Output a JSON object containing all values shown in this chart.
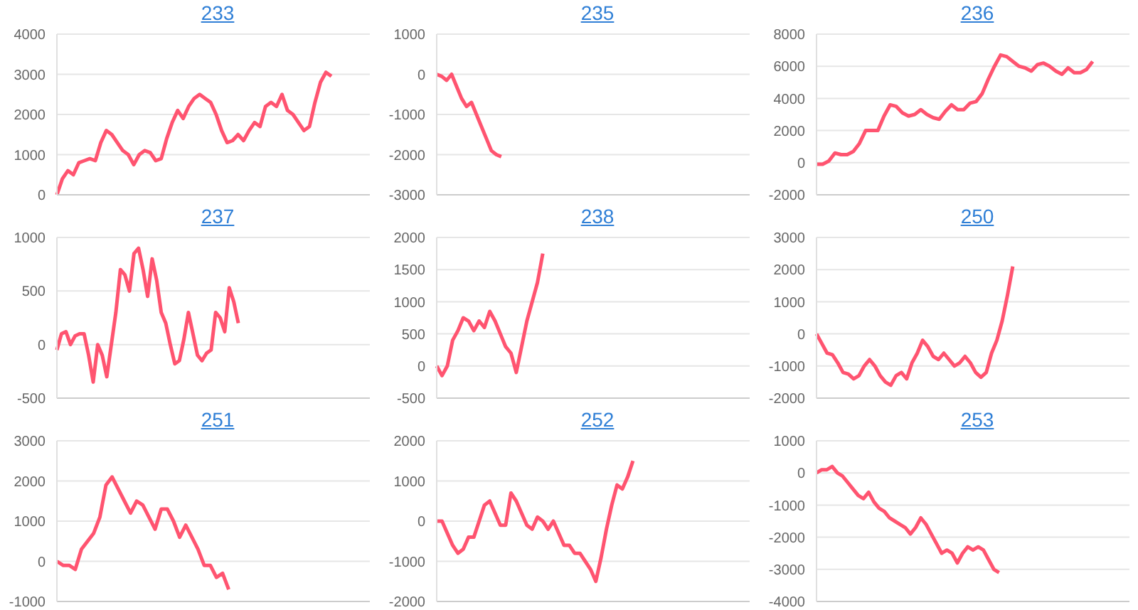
{
  "chart_data": [
    {
      "type": "line",
      "title": "233",
      "color": "#ff5470",
      "ylim": [
        0,
        4000
      ],
      "yticks": [
        0,
        1000,
        2000,
        3000,
        4000
      ],
      "grid": "y",
      "tick_labels": "y",
      "categories": [
        null,
        null,
        null,
        null,
        null,
        null,
        null,
        null,
        null,
        null,
        null,
        null,
        null,
        null,
        null,
        null,
        null,
        null,
        null,
        null,
        null,
        null,
        null,
        null,
        null,
        null,
        null,
        null,
        null,
        null,
        null,
        null,
        null,
        null,
        null,
        null,
        null,
        null,
        null,
        null,
        null,
        null,
        null,
        null,
        null,
        null,
        null,
        null,
        null,
        null,
        null,
        null,
        null,
        null,
        null,
        null,
        null,
        null
      ],
      "values": [
        0,
        400,
        600,
        500,
        800,
        850,
        900,
        850,
        1300,
        1600,
        1500,
        1300,
        1100,
        1000,
        750,
        1000,
        1100,
        1050,
        850,
        900,
        1400,
        1800,
        2100,
        1900,
        2200,
        2400,
        2500,
        2400,
        2300,
        2000,
        1600,
        1300,
        1350,
        1500,
        1350,
        1600,
        1800,
        1700,
        2200,
        2300,
        2200,
        2500,
        2100,
        2000,
        1800,
        1600,
        1700,
        2300,
        2800,
        3050,
        2950,
        null,
        null,
        null,
        null,
        null,
        null,
        null
      ]
    },
    {
      "type": "line",
      "title": "235",
      "color": "#ff5470",
      "ylim": [
        -3000,
        1000
      ],
      "yticks": [
        -3000,
        -2000,
        -1000,
        0,
        1000
      ],
      "grid": "y",
      "tick_labels": "y",
      "categories": [
        null,
        null,
        null,
        null,
        null,
        null,
        null,
        null,
        null,
        null,
        null,
        null,
        null,
        null,
        null,
        null,
        null,
        null,
        null,
        null,
        null,
        null,
        null,
        null,
        null,
        null,
        null,
        null,
        null,
        null,
        null,
        null,
        null,
        null,
        null,
        null,
        null,
        null,
        null,
        null,
        null,
        null,
        null,
        null,
        null,
        null,
        null,
        null,
        null,
        null,
        null,
        null,
        null,
        null,
        null,
        null,
        null,
        null,
        null,
        null,
        null,
        null,
        null,
        null
      ],
      "values": [
        0,
        -50,
        -150,
        0,
        -300,
        -600,
        -800,
        -700,
        -1000,
        -1300,
        -1600,
        -1900,
        -2000,
        -2050,
        null,
        null,
        null,
        null,
        null,
        null,
        null,
        null,
        null,
        null,
        null,
        null,
        null,
        null,
        null,
        null,
        null,
        null,
        null,
        null,
        null,
        null,
        null,
        null,
        null,
        null,
        null,
        null,
        null,
        null,
        null,
        null,
        null,
        null,
        null,
        null,
        null,
        null,
        null,
        null,
        null,
        null,
        null,
        null,
        null,
        null,
        null,
        null,
        null,
        null
      ]
    },
    {
      "type": "line",
      "title": "236",
      "color": "#ff5470",
      "ylim": [
        -2000,
        8000
      ],
      "yticks": [
        -2000,
        0,
        2000,
        4000,
        6000,
        8000
      ],
      "grid": "y",
      "tick_labels": "y",
      "categories": [
        null,
        null,
        null,
        null,
        null,
        null,
        null,
        null,
        null,
        null,
        null,
        null,
        null,
        null,
        null,
        null,
        null,
        null,
        null,
        null,
        null,
        null,
        null,
        null,
        null,
        null,
        null,
        null,
        null,
        null,
        null,
        null,
        null,
        null,
        null,
        null,
        null,
        null,
        null,
        null,
        null,
        null,
        null,
        null,
        null,
        null,
        null,
        null,
        null,
        null,
        null,
        null
      ],
      "values": [
        -100,
        -100,
        100,
        600,
        500,
        500,
        700,
        1200,
        2000,
        2000,
        2000,
        2900,
        3600,
        3500,
        3100,
        2900,
        3000,
        3300,
        3000,
        2800,
        2700,
        3200,
        3600,
        3300,
        3300,
        3700,
        3800,
        4300,
        5200,
        6000,
        6700,
        6600,
        6300,
        6000,
        5900,
        5700,
        6100,
        6200,
        6000,
        5700,
        5500,
        5900,
        5600,
        5600,
        5800,
        6300,
        null,
        null,
        null,
        null,
        null,
        null
      ]
    },
    {
      "type": "line",
      "title": "237",
      "color": "#ff5470",
      "ylim": [
        -500,
        1000
      ],
      "yticks": [
        -500,
        0,
        500,
        1000
      ],
      "grid": "y",
      "tick_labels": "y",
      "categories": [
        null,
        null,
        null,
        null,
        null,
        null,
        null,
        null,
        null,
        null,
        null,
        null,
        null,
        null,
        null,
        null,
        null,
        null,
        null,
        null,
        null,
        null,
        null,
        null,
        null,
        null,
        null,
        null,
        null,
        null,
        null,
        null,
        null,
        null,
        null,
        null,
        null,
        null,
        null,
        null,
        null,
        null,
        null,
        null,
        null,
        null,
        null,
        null,
        null,
        null,
        null,
        null,
        null,
        null,
        null,
        null,
        null,
        null,
        null,
        null,
        null,
        null,
        null,
        null,
        null,
        null,
        null,
        null,
        null,
        null
      ],
      "values": [
        -50,
        100,
        120,
        0,
        80,
        100,
        100,
        -100,
        -350,
        0,
        -100,
        -300,
        0,
        300,
        700,
        650,
        500,
        850,
        900,
        700,
        450,
        800,
        600,
        300,
        200,
        0,
        -180,
        -150,
        50,
        300,
        100,
        -100,
        -150,
        -80,
        -50,
        300,
        250,
        120,
        530,
        400,
        200,
        null,
        null,
        null,
        null,
        null,
        null,
        null,
        null,
        null,
        null,
        null,
        null,
        null,
        null,
        null,
        null,
        null,
        null,
        null,
        null,
        null,
        null,
        null,
        null,
        null,
        null,
        null,
        null,
        null
      ]
    },
    {
      "type": "line",
      "title": "238",
      "color": "#ff5470",
      "ylim": [
        -500,
        2000
      ],
      "yticks": [
        -500,
        0,
        500,
        1000,
        1500,
        2000
      ],
      "grid": "y",
      "tick_labels": "y",
      "categories": [
        null,
        null,
        null,
        null,
        null,
        null,
        null,
        null,
        null,
        null,
        null,
        null,
        null,
        null,
        null,
        null,
        null,
        null,
        null,
        null,
        null,
        null,
        null,
        null,
        null,
        null,
        null,
        null,
        null,
        null,
        null,
        null,
        null,
        null,
        null,
        null,
        null,
        null,
        null,
        null,
        null,
        null,
        null,
        null,
        null,
        null,
        null,
        null,
        null,
        null,
        null,
        null,
        null,
        null,
        null,
        null,
        null,
        null,
        null,
        null
      ],
      "values": [
        0,
        -150,
        0,
        400,
        550,
        750,
        700,
        550,
        700,
        600,
        850,
        700,
        500,
        300,
        200,
        -100,
        300,
        700,
        1000,
        1300,
        1750,
        null,
        null,
        null,
        null,
        null,
        null,
        null,
        null,
        null,
        null,
        null,
        null,
        null,
        null,
        null,
        null,
        null,
        null,
        null,
        null,
        null,
        null,
        null,
        null,
        null,
        null,
        null,
        null,
        null,
        null,
        null,
        null,
        null,
        null,
        null,
        null,
        null,
        null,
        null
      ]
    },
    {
      "type": "line",
      "title": "250",
      "color": "#ff5470",
      "ylim": [
        -2000,
        3000
      ],
      "yticks": [
        -2000,
        -1000,
        0,
        1000,
        2000,
        3000
      ],
      "grid": "y",
      "tick_labels": "y",
      "categories": [
        null,
        null,
        null,
        null,
        null,
        null,
        null,
        null,
        null,
        null,
        null,
        null,
        null,
        null,
        null,
        null,
        null,
        null,
        null,
        null,
        null,
        null,
        null,
        null,
        null,
        null,
        null,
        null,
        null,
        null,
        null,
        null,
        null,
        null,
        null,
        null,
        null,
        null,
        null,
        null,
        null,
        null,
        null,
        null,
        null,
        null,
        null,
        null,
        null,
        null,
        null,
        null,
        null,
        null,
        null,
        null,
        null,
        null,
        null,
        null
      ],
      "values": [
        0,
        -300,
        -600,
        -650,
        -900,
        -1200,
        -1250,
        -1400,
        -1300,
        -1000,
        -800,
        -1000,
        -1300,
        -1500,
        -1600,
        -1300,
        -1200,
        -1400,
        -900,
        -600,
        -200,
        -400,
        -700,
        -800,
        -600,
        -800,
        -1000,
        -900,
        -700,
        -900,
        -1200,
        -1350,
        -1200,
        -600,
        -200,
        400,
        1200,
        2100,
        null,
        null,
        null,
        null,
        null,
        null,
        null,
        null,
        null,
        null,
        null,
        null,
        null,
        null,
        null,
        null,
        null,
        null,
        null,
        null,
        null,
        null
      ]
    },
    {
      "type": "line",
      "title": "251",
      "color": "#ff5470",
      "ylim": [
        -1000,
        3000
      ],
      "yticks": [
        -1000,
        0,
        1000,
        2000,
        3000
      ],
      "grid": "y",
      "tick_labels": "y",
      "categories": [
        null,
        null,
        null,
        null,
        null,
        null,
        null,
        null,
        null,
        null,
        null,
        null,
        null,
        null,
        null,
        null,
        null,
        null,
        null,
        null,
        null,
        null,
        null,
        null,
        null,
        null,
        null,
        null,
        null,
        null,
        null,
        null,
        null,
        null,
        null,
        null,
        null,
        null,
        null,
        null,
        null,
        null,
        null,
        null,
        null,
        null,
        null,
        null,
        null,
        null,
        null,
        null
      ],
      "values": [
        0,
        -100,
        -100,
        -200,
        300,
        500,
        700,
        1100,
        1900,
        2100,
        1800,
        1500,
        1200,
        1500,
        1400,
        1100,
        800,
        1300,
        1300,
        1000,
        600,
        900,
        600,
        300,
        -100,
        -100,
        -400,
        -300,
        -700,
        null,
        null,
        null,
        null,
        null,
        null,
        null,
        null,
        null,
        null,
        null,
        null,
        null,
        null,
        null,
        null,
        null,
        null,
        null,
        null,
        null,
        null,
        null
      ]
    },
    {
      "type": "line",
      "title": "252",
      "color": "#ff5470",
      "ylim": [
        -2000,
        2000
      ],
      "yticks": [
        -2000,
        -1000,
        0,
        1000,
        2000
      ],
      "grid": "y",
      "tick_labels": "y",
      "categories": [
        null,
        null,
        null,
        null,
        null,
        null,
        null,
        null,
        null,
        null,
        null,
        null,
        null,
        null,
        null,
        null,
        null,
        null,
        null,
        null,
        null,
        null,
        null,
        null,
        null,
        null,
        null,
        null,
        null,
        null,
        null,
        null,
        null,
        null,
        null,
        null,
        null,
        null,
        null,
        null,
        null,
        null,
        null,
        null,
        null,
        null,
        null,
        null,
        null,
        null,
        null,
        null,
        null,
        null,
        null,
        null,
        null,
        null,
        null,
        null
      ],
      "values": [
        0,
        0,
        -300,
        -600,
        -800,
        -700,
        -400,
        -400,
        0,
        400,
        500,
        200,
        -100,
        -100,
        700,
        500,
        200,
        -100,
        -200,
        100,
        0,
        -200,
        0,
        -300,
        -600,
        -600,
        -800,
        -800,
        -1000,
        -1200,
        -1500,
        -900,
        -200,
        400,
        900,
        800,
        1100,
        1500,
        null,
        null,
        null,
        null,
        null,
        null,
        null,
        null,
        null,
        null,
        null,
        null,
        null,
        null,
        null,
        null,
        null,
        null,
        null,
        null,
        null,
        null
      ]
    },
    {
      "type": "line",
      "title": "253",
      "color": "#ff5470",
      "ylim": [
        -4000,
        1000
      ],
      "yticks": [
        -4000,
        -3000,
        -2000,
        -1000,
        0,
        1000
      ],
      "grid": "y",
      "tick_labels": "y",
      "categories": [
        null,
        null,
        null,
        null,
        null,
        null,
        null,
        null,
        null,
        null,
        null,
        null,
        null,
        null,
        null,
        null,
        null,
        null,
        null,
        null,
        null,
        null,
        null,
        null,
        null,
        null,
        null,
        null,
        null,
        null,
        null,
        null,
        null,
        null,
        null,
        null,
        null,
        null,
        null,
        null,
        null,
        null,
        null,
        null,
        null,
        null,
        null,
        null,
        null,
        null,
        null,
        null,
        null,
        null,
        null,
        null,
        null,
        null,
        null,
        null,
        null
      ],
      "values": [
        0,
        100,
        100,
        200,
        0,
        -100,
        -300,
        -500,
        -700,
        -800,
        -600,
        -900,
        -1100,
        -1200,
        -1400,
        -1500,
        -1600,
        -1700,
        -1900,
        -1700,
        -1400,
        -1600,
        -1900,
        -2200,
        -2500,
        -2400,
        -2500,
        -2800,
        -2500,
        -2300,
        -2400,
        -2300,
        -2400,
        -2700,
        -3000,
        -3100,
        null,
        null,
        null,
        null,
        null,
        null,
        null,
        null,
        null,
        null,
        null,
        null,
        null,
        null,
        null,
        null,
        null,
        null,
        null,
        null,
        null,
        null,
        null,
        null,
        null
      ]
    }
  ]
}
